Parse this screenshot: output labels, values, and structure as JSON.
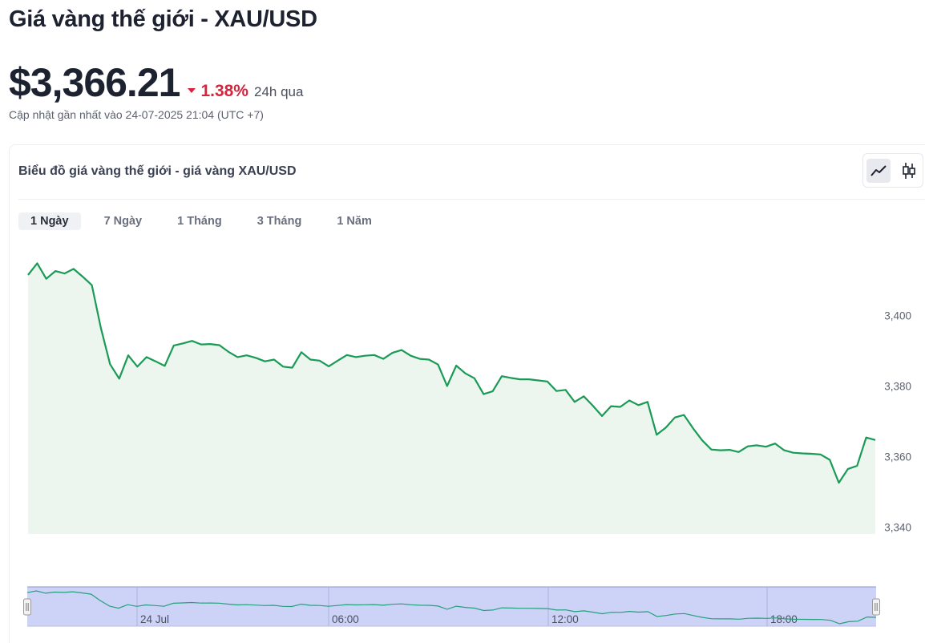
{
  "page": {
    "title": "Giá vàng thế giới - XAU/USD",
    "price": "$3,366.21",
    "change_pct": "1.38%",
    "change_period": "24h qua",
    "change_direction": "down",
    "updated": "Cập nhật gần nhất vào 24-07-2025 21:04 (UTC +7)"
  },
  "card": {
    "title": "Biểu đồ giá vàng thế giới - giá vàng XAU/USD",
    "chart_types": [
      {
        "name": "line",
        "icon": "line-chart-icon",
        "active": true
      },
      {
        "name": "candlestick",
        "icon": "candlestick-icon",
        "active": false
      }
    ],
    "range_tabs": [
      {
        "label": "1 Ngày",
        "active": true
      },
      {
        "label": "7 Ngày",
        "active": false
      },
      {
        "label": "1 Tháng",
        "active": false
      },
      {
        "label": "3 Tháng",
        "active": false
      },
      {
        "label": "1 Năm",
        "active": false
      }
    ]
  },
  "colors": {
    "line": "#1a9b55",
    "area": "#ecf6ef",
    "down": "#d6243f",
    "navigator_bg": "#cdd3f7",
    "navigator_line": "#24a07d"
  },
  "chart_data": {
    "type": "area",
    "y_ticks": [
      "3,400",
      "3,380",
      "3,360",
      "3,340"
    ],
    "y_tick_values": [
      3400,
      3380,
      3360,
      3340
    ],
    "ylim": [
      3338,
      3418
    ],
    "grid": false,
    "series": [
      {
        "values": [
          3411.5,
          3414.8,
          3410.4,
          3412.6,
          3411.9,
          3413.2,
          3411.0,
          3408.6,
          3396.4,
          3386.2,
          3382.1,
          3388.7,
          3385.5,
          3388.2,
          3387.0,
          3385.7,
          3391.5,
          3392.1,
          3392.8,
          3391.8,
          3391.9,
          3391.6,
          3389.7,
          3388.2,
          3388.7,
          3388.0,
          3387.0,
          3387.5,
          3385.5,
          3385.2,
          3389.6,
          3387.5,
          3387.2,
          3385.6,
          3387.2,
          3388.8,
          3388.2,
          3388.6,
          3388.8,
          3387.7,
          3389.4,
          3390.2,
          3388.6,
          3387.7,
          3387.5,
          3386.1,
          3380.0,
          3385.8,
          3383.6,
          3382.2,
          3377.7,
          3378.5,
          3382.8,
          3382.3,
          3381.9,
          3381.9,
          3381.6,
          3381.3,
          3378.6,
          3378.9,
          3375.5,
          3377.1,
          3374.4,
          3371.5,
          3374.3,
          3374.1,
          3375.9,
          3374.6,
          3375.5,
          3366.2,
          3368.2,
          3371.1,
          3371.8,
          3368.0,
          3364.6,
          3362.0,
          3361.8,
          3361.9,
          3361.3,
          3362.9,
          3363.2,
          3362.8,
          3363.7,
          3361.8,
          3361.1,
          3360.9,
          3360.8,
          3360.6,
          3359.1,
          3352.6,
          3356.5,
          3357.4,
          3365.4,
          3364.7
        ]
      }
    ],
    "navigator": {
      "x_ticks": [
        "24 Jul",
        "06:00",
        "12:00",
        "18:00"
      ]
    }
  }
}
